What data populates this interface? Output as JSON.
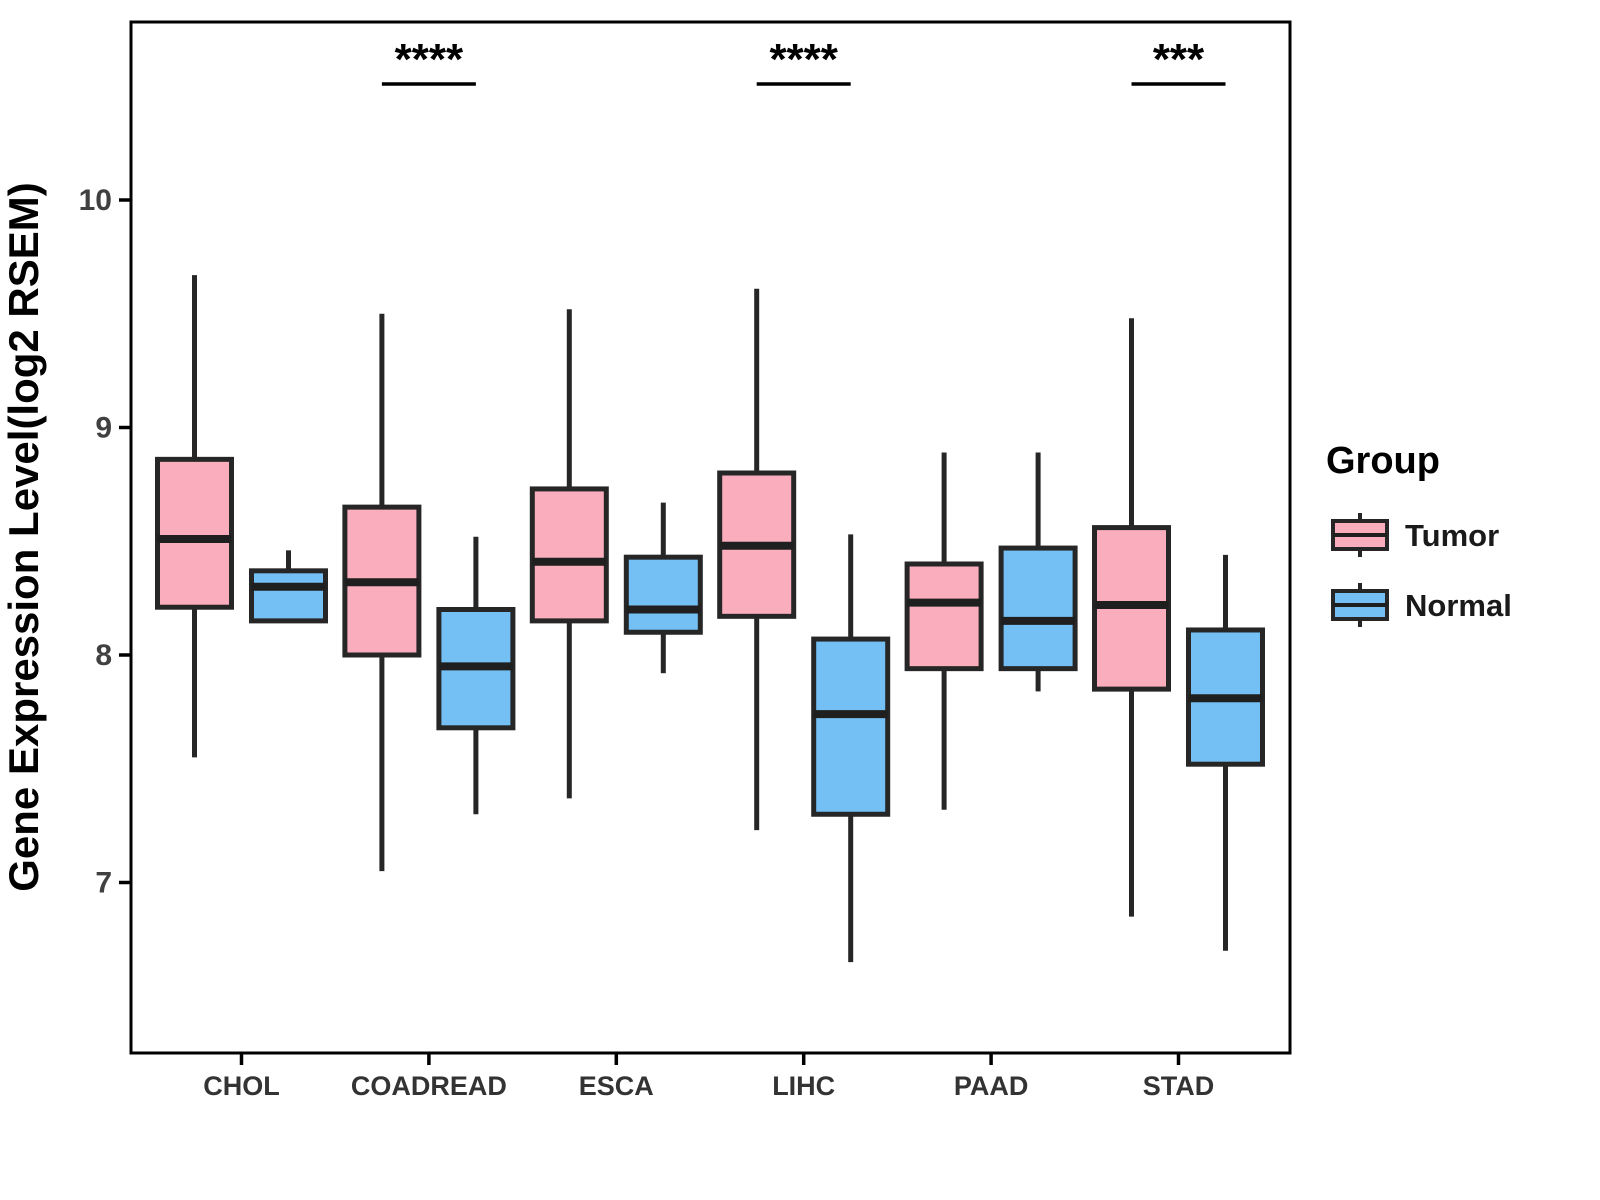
{
  "chart_data": {
    "type": "boxplot",
    "title": "",
    "xlabel": "",
    "ylabel": "Gene Expression Level(log2 RSEM)",
    "categories": [
      "CHOL",
      "COADREAD",
      "ESCA",
      "LIHC",
      "PAAD",
      "STAD"
    ],
    "y_ticks": [
      7,
      8,
      9,
      10
    ],
    "ylim": [
      6.25,
      10.78
    ],
    "grid": "off",
    "legend": {
      "title": "Group",
      "position": "right",
      "entries": [
        {
          "label": "Tumor",
          "color": "#FAADBC"
        },
        {
          "label": "Normal",
          "color": "#74C0F5"
        }
      ]
    },
    "series": [
      {
        "name": "Tumor",
        "color": "#FAADBC",
        "boxes": [
          {
            "category": "CHOL",
            "min": 7.55,
            "q1": 8.21,
            "median": 8.51,
            "q3": 8.86,
            "max": 9.67
          },
          {
            "category": "COADREAD",
            "min": 7.05,
            "q1": 8.0,
            "median": 8.32,
            "q3": 8.65,
            "max": 9.5
          },
          {
            "category": "ESCA",
            "min": 7.37,
            "q1": 8.15,
            "median": 8.41,
            "q3": 8.73,
            "max": 9.52
          },
          {
            "category": "LIHC",
            "min": 7.23,
            "q1": 8.17,
            "median": 8.48,
            "q3": 8.8,
            "max": 9.61
          },
          {
            "category": "PAAD",
            "min": 7.32,
            "q1": 7.94,
            "median": 8.23,
            "q3": 8.4,
            "max": 8.89
          },
          {
            "category": "STAD",
            "min": 6.85,
            "q1": 7.85,
            "median": 8.22,
            "q3": 8.56,
            "max": 9.48
          }
        ]
      },
      {
        "name": "Normal",
        "color": "#74C0F5",
        "boxes": [
          {
            "category": "CHOL",
            "min": 8.15,
            "q1": 8.15,
            "median": 8.3,
            "q3": 8.37,
            "max": 8.46
          },
          {
            "category": "COADREAD",
            "min": 7.3,
            "q1": 7.68,
            "median": 7.95,
            "q3": 8.2,
            "max": 8.52
          },
          {
            "category": "ESCA",
            "min": 7.92,
            "q1": 8.1,
            "median": 8.2,
            "q3": 8.43,
            "max": 8.67
          },
          {
            "category": "LIHC",
            "min": 6.65,
            "q1": 7.3,
            "median": 7.74,
            "q3": 8.07,
            "max": 8.53
          },
          {
            "category": "PAAD",
            "min": 7.84,
            "q1": 7.94,
            "median": 8.15,
            "q3": 8.47,
            "max": 8.89
          },
          {
            "category": "STAD",
            "min": 6.7,
            "q1": 7.52,
            "median": 7.81,
            "q3": 8.11,
            "max": 8.44
          }
        ]
      }
    ],
    "significance": [
      {
        "category": "COADREAD",
        "label": "****"
      },
      {
        "category": "LIHC",
        "label": "****"
      },
      {
        "category": "STAD",
        "label": "***"
      }
    ],
    "colors": {
      "box_border": "#262626",
      "median": "#1f1f1f",
      "axis": "#000000",
      "tick_label": "#404040",
      "background": "#ffffff"
    }
  }
}
